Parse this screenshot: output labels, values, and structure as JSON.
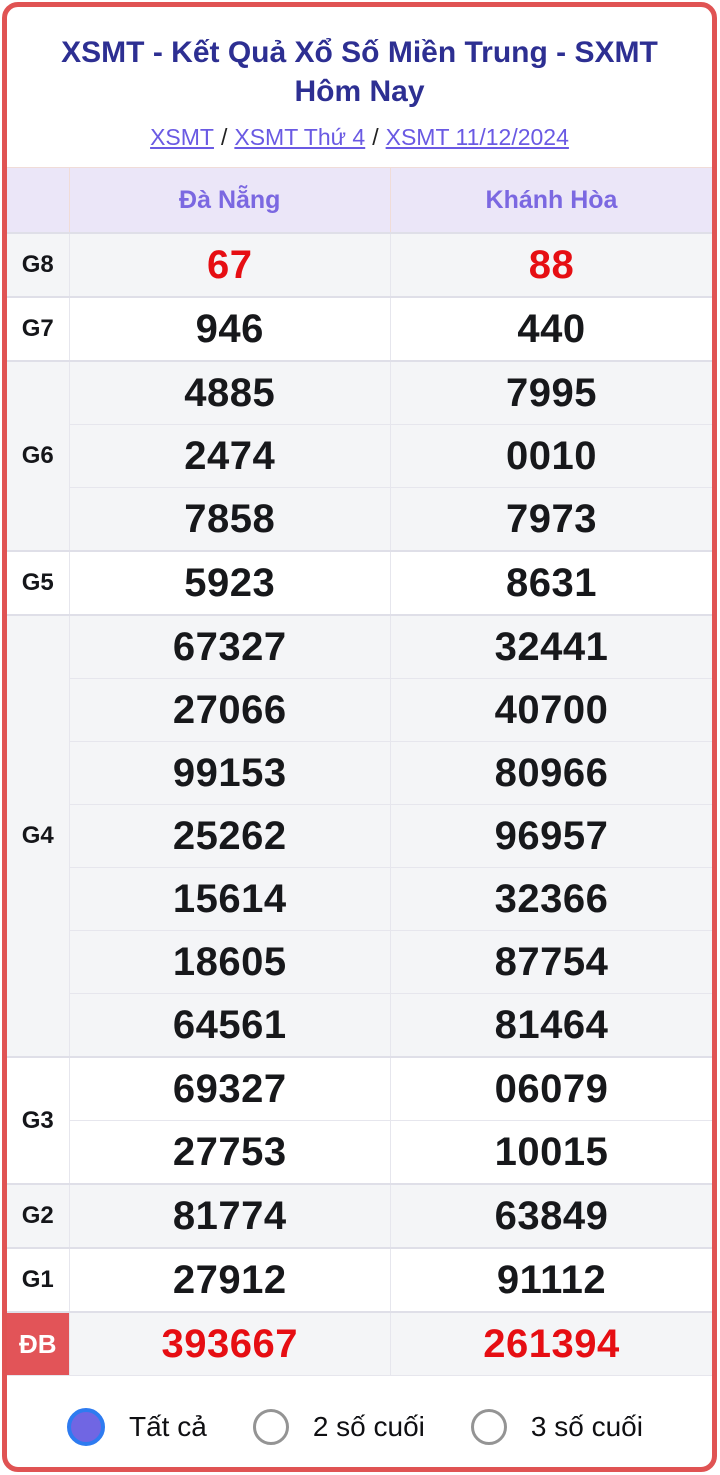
{
  "header": {
    "title": "XSMT - Kết Quả Xổ Số Miền Trung - SXMT Hôm Nay",
    "breadcrumb": {
      "items": [
        "XSMT",
        "XSMT Thứ 4",
        "XSMT 11/12/2024"
      ],
      "separator": "/"
    }
  },
  "table": {
    "columns": [
      "Đà Nẵng",
      "Khánh Hòa"
    ],
    "groups": [
      {
        "label": "G8",
        "rows": [
          {
            "c1": "67",
            "c2": "88"
          }
        ]
      },
      {
        "label": "G7",
        "rows": [
          {
            "c1": "946",
            "c2": "440"
          }
        ]
      },
      {
        "label": "G6",
        "rows": [
          {
            "c1": "4885",
            "c2": "7995"
          },
          {
            "c1": "2474",
            "c2": "0010"
          },
          {
            "c1": "7858",
            "c2": "7973"
          }
        ]
      },
      {
        "label": "G5",
        "rows": [
          {
            "c1": "5923",
            "c2": "8631"
          }
        ]
      },
      {
        "label": "G4",
        "rows": [
          {
            "c1": "67327",
            "c2": "32441"
          },
          {
            "c1": "27066",
            "c2": "40700"
          },
          {
            "c1": "99153",
            "c2": "80966"
          },
          {
            "c1": "25262",
            "c2": "96957"
          },
          {
            "c1": "15614",
            "c2": "32366"
          },
          {
            "c1": "18605",
            "c2": "87754"
          },
          {
            "c1": "64561",
            "c2": "81464"
          }
        ]
      },
      {
        "label": "G3",
        "rows": [
          {
            "c1": "69327",
            "c2": "06079"
          },
          {
            "c1": "27753",
            "c2": "10015"
          }
        ]
      },
      {
        "label": "G2",
        "rows": [
          {
            "c1": "81774",
            "c2": "63849"
          }
        ]
      },
      {
        "label": "G1",
        "rows": [
          {
            "c1": "27912",
            "c2": "91112"
          }
        ]
      },
      {
        "label": "ĐB",
        "rows": [
          {
            "c1": "393667",
            "c2": "261394"
          }
        ]
      }
    ]
  },
  "filters": {
    "options": [
      {
        "label": "Tất cả",
        "selected": true
      },
      {
        "label": "2 số cuối",
        "selected": false
      },
      {
        "label": "3 số cuối",
        "selected": false
      }
    ]
  },
  "colors": {
    "title_navy": "#2d2f92",
    "link_purple": "#6a5ae3",
    "header_purple": "#7b68e1",
    "header_bg": "#ebe6f8",
    "highlight_red": "#e60e13",
    "db_badge_bg": "#e25458",
    "page_border": "#e05353",
    "shade_row_bg": "#f4f5f7",
    "radio_selected_fill": "#7066e3",
    "radio_selected_ring": "#2e7bf0"
  }
}
